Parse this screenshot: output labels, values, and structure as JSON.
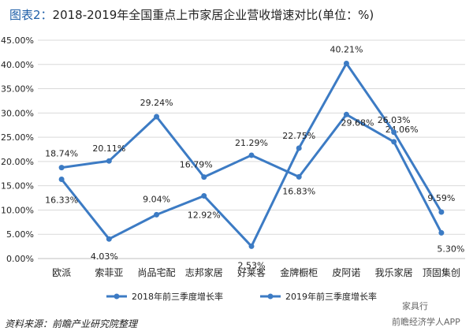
{
  "title_label": "图表2：",
  "title_text": "2018-2019年全国重点上市家居企业营收增速对比(单位：%)",
  "source": "资料来源：前瞻产业研究院整理",
  "watermark_left": "家具行",
  "watermark_right": "前瞻经济学人APP",
  "colors": {
    "series": "#3c7bc4",
    "grid": "#d9d9d9",
    "text": "#222222"
  },
  "chart_data": {
    "type": "line",
    "categories": [
      "欧派",
      "索菲亚",
      "尚品宅配",
      "志邦家居",
      "好莱客",
      "金牌橱柜",
      "皮阿诺",
      "我乐家居",
      "顶固集创"
    ],
    "y_ticks": [
      "0.00%",
      "5.00%",
      "10.00%",
      "15.00%",
      "20.00%",
      "25.00%",
      "30.00%",
      "35.00%",
      "40.00%",
      "45.00%"
    ],
    "ylim": [
      0,
      45
    ],
    "grid": true,
    "legend_position": "bottom",
    "series": [
      {
        "name": "2018年前三季度增长率",
        "values": [
          18.74,
          20.11,
          29.24,
          16.79,
          21.29,
          16.83,
          29.68,
          24.06,
          5.3
        ],
        "labels": [
          "18.74%",
          "20.11%",
          "29.24%",
          "16.79%",
          "21.29%",
          "16.83%",
          "29.68%",
          "24.06%",
          "5.30%"
        ]
      },
      {
        "name": "2019年前三季度增长率",
        "values": [
          16.33,
          4.03,
          9.04,
          12.92,
          2.53,
          22.75,
          40.21,
          26.03,
          9.59
        ],
        "labels": [
          "16.33%",
          "4.03%",
          "9.04%",
          "12.92%",
          "2.53%",
          "22.75%",
          "40.21%",
          "26.03%",
          "9.59%"
        ]
      }
    ]
  }
}
